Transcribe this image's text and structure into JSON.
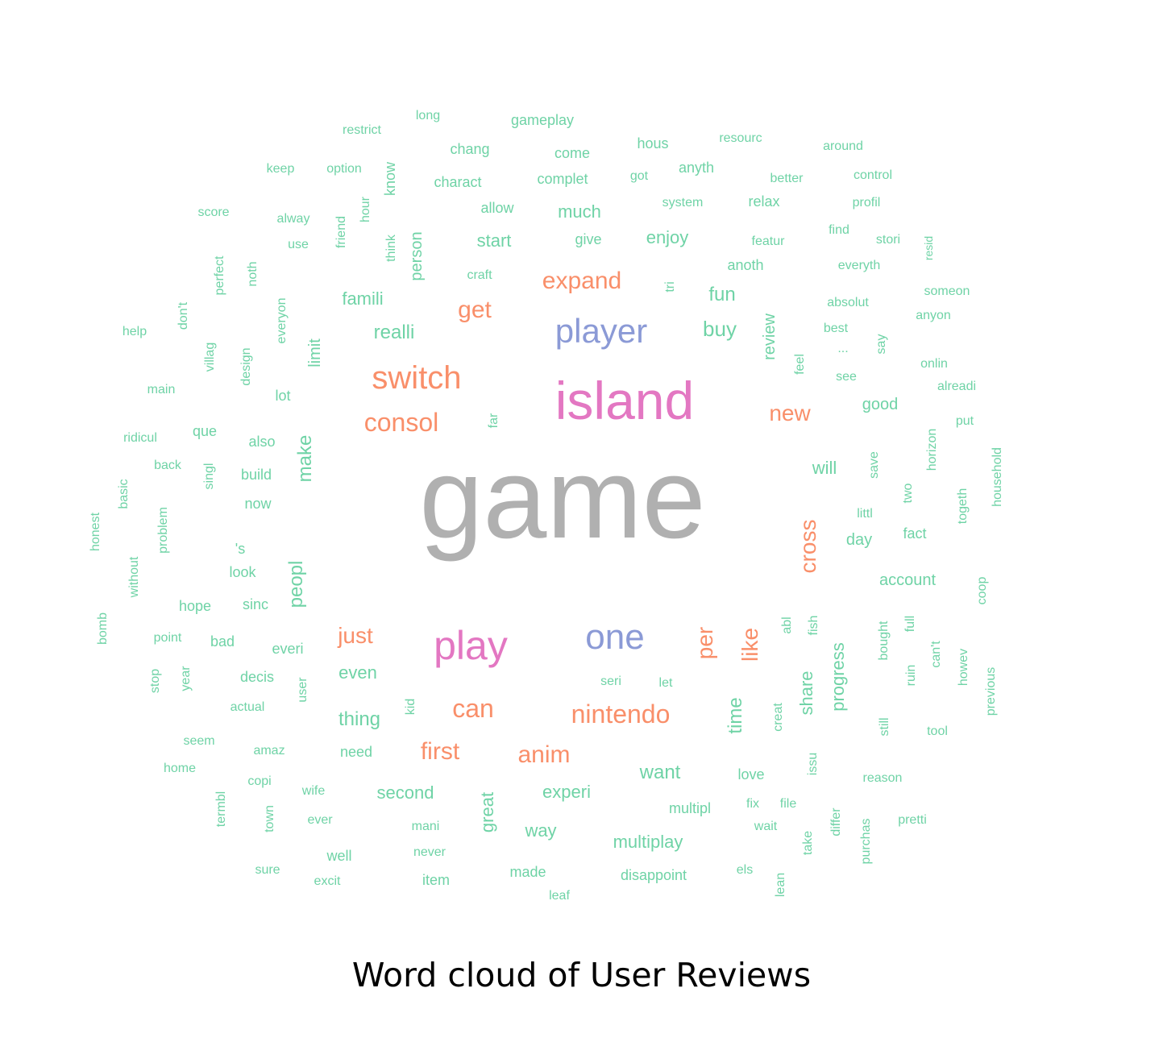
{
  "title": "Word cloud of User Reviews",
  "colors": {
    "green": "#6fd3a6",
    "orange": "#f98f6a",
    "pink": "#e377c2",
    "blue": "#8b9ad6",
    "gray": "#b0b0b0"
  },
  "words": [
    {
      "text": "game",
      "color": "gray"
    },
    {
      "text": "island",
      "color": "pink"
    },
    {
      "text": "play",
      "color": "pink"
    },
    {
      "text": "player",
      "color": "blue"
    },
    {
      "text": "one",
      "color": "blue"
    },
    {
      "text": "switch",
      "color": "orange"
    },
    {
      "text": "consol",
      "color": "orange"
    },
    {
      "text": "nintendo",
      "color": "orange"
    },
    {
      "text": "expand",
      "color": "orange"
    },
    {
      "text": "get",
      "color": "orange"
    },
    {
      "text": "new",
      "color": "orange"
    },
    {
      "text": "can",
      "color": "orange"
    },
    {
      "text": "just",
      "color": "orange"
    },
    {
      "text": "first",
      "color": "orange"
    },
    {
      "text": "anim",
      "color": "orange"
    },
    {
      "text": "cross",
      "color": "orange"
    },
    {
      "text": "like",
      "color": "orange"
    },
    {
      "text": "per",
      "color": "orange"
    },
    {
      "text": "buy",
      "color": "green"
    },
    {
      "text": "fun",
      "color": "green"
    },
    {
      "text": "make",
      "color": "green"
    },
    {
      "text": "peopl",
      "color": "green"
    },
    {
      "text": "limit",
      "color": "green"
    },
    {
      "text": "famili",
      "color": "green"
    },
    {
      "text": "realli",
      "color": "green"
    },
    {
      "text": "much",
      "color": "green"
    },
    {
      "text": "start",
      "color": "green"
    },
    {
      "text": "enjoy",
      "color": "green"
    },
    {
      "text": "want",
      "color": "green"
    },
    {
      "text": "thing",
      "color": "green"
    },
    {
      "text": "even",
      "color": "green"
    },
    {
      "text": "time",
      "color": "green"
    },
    {
      "text": "share",
      "color": "green"
    },
    {
      "text": "progress",
      "color": "green"
    },
    {
      "text": "will",
      "color": "green"
    },
    {
      "text": "good",
      "color": "green"
    },
    {
      "text": "day",
      "color": "green"
    },
    {
      "text": "account",
      "color": "green"
    },
    {
      "text": "second",
      "color": "green"
    },
    {
      "text": "experi",
      "color": "green"
    },
    {
      "text": "great",
      "color": "green"
    },
    {
      "text": "way",
      "color": "green"
    },
    {
      "text": "multiplay",
      "color": "green"
    },
    {
      "text": "review",
      "color": "green"
    },
    {
      "text": "person",
      "color": "green"
    },
    {
      "text": "gameplay",
      "color": "green"
    },
    {
      "text": "restrict",
      "color": "green"
    },
    {
      "text": "long",
      "color": "green"
    },
    {
      "text": "chang",
      "color": "green"
    },
    {
      "text": "come",
      "color": "green"
    },
    {
      "text": "hous",
      "color": "green"
    },
    {
      "text": "resourc",
      "color": "green"
    },
    {
      "text": "around",
      "color": "green"
    },
    {
      "text": "keep",
      "color": "green"
    },
    {
      "text": "option",
      "color": "green"
    },
    {
      "text": "know",
      "color": "green"
    },
    {
      "text": "charact",
      "color": "green"
    },
    {
      "text": "complet",
      "color": "green"
    },
    {
      "text": "got",
      "color": "green"
    },
    {
      "text": "anyth",
      "color": "green"
    },
    {
      "text": "better",
      "color": "green"
    },
    {
      "text": "control",
      "color": "green"
    },
    {
      "text": "score",
      "color": "green"
    },
    {
      "text": "alway",
      "color": "green"
    },
    {
      "text": "hour",
      "color": "green"
    },
    {
      "text": "allow",
      "color": "green"
    },
    {
      "text": "system",
      "color": "green"
    },
    {
      "text": "relax",
      "color": "green"
    },
    {
      "text": "profil",
      "color": "green"
    },
    {
      "text": "use",
      "color": "green"
    },
    {
      "text": "friend",
      "color": "green"
    },
    {
      "text": "give",
      "color": "green"
    },
    {
      "text": "featur",
      "color": "green"
    },
    {
      "text": "find",
      "color": "green"
    },
    {
      "text": "stori",
      "color": "green"
    },
    {
      "text": "resid",
      "color": "green"
    },
    {
      "text": "perfect",
      "color": "green"
    },
    {
      "text": "noth",
      "color": "green"
    },
    {
      "text": "think",
      "color": "green"
    },
    {
      "text": "craft",
      "color": "green"
    },
    {
      "text": "anoth",
      "color": "green"
    },
    {
      "text": "everyth",
      "color": "green"
    },
    {
      "text": "someon",
      "color": "green"
    },
    {
      "text": "don't",
      "color": "green"
    },
    {
      "text": "everyon",
      "color": "green"
    },
    {
      "text": "tri",
      "color": "green"
    },
    {
      "text": "absolut",
      "color": "green"
    },
    {
      "text": "anyon",
      "color": "green"
    },
    {
      "text": "help",
      "color": "green"
    },
    {
      "text": "best",
      "color": "green"
    },
    {
      "text": "villag",
      "color": "green"
    },
    {
      "text": "design",
      "color": "green"
    },
    {
      "text": "feel",
      "color": "green"
    },
    {
      "text": "...",
      "color": "green"
    },
    {
      "text": "say",
      "color": "green"
    },
    {
      "text": "onlin",
      "color": "green"
    },
    {
      "text": "see",
      "color": "green"
    },
    {
      "text": "alreadi",
      "color": "green"
    },
    {
      "text": "main",
      "color": "green"
    },
    {
      "text": "lot",
      "color": "green"
    },
    {
      "text": "far",
      "color": "green"
    },
    {
      "text": "put",
      "color": "green"
    },
    {
      "text": "ridicul",
      "color": "green"
    },
    {
      "text": "que",
      "color": "green"
    },
    {
      "text": "also",
      "color": "green"
    },
    {
      "text": "horizon",
      "color": "green"
    },
    {
      "text": "back",
      "color": "green"
    },
    {
      "text": "singl",
      "color": "green"
    },
    {
      "text": "build",
      "color": "green"
    },
    {
      "text": "save",
      "color": "green"
    },
    {
      "text": "household",
      "color": "green"
    },
    {
      "text": "basic",
      "color": "green"
    },
    {
      "text": "now",
      "color": "green"
    },
    {
      "text": "two",
      "color": "green"
    },
    {
      "text": "littl",
      "color": "green"
    },
    {
      "text": "togeth",
      "color": "green"
    },
    {
      "text": "honest",
      "color": "green"
    },
    {
      "text": "problem",
      "color": "green"
    },
    {
      "text": "fact",
      "color": "green"
    },
    {
      "text": "'s",
      "color": "green"
    },
    {
      "text": "without",
      "color": "green"
    },
    {
      "text": "look",
      "color": "green"
    },
    {
      "text": "coop",
      "color": "green"
    },
    {
      "text": "hope",
      "color": "green"
    },
    {
      "text": "sinc",
      "color": "green"
    },
    {
      "text": "bomb",
      "color": "green"
    },
    {
      "text": "abl",
      "color": "green"
    },
    {
      "text": "fish",
      "color": "green"
    },
    {
      "text": "bought",
      "color": "green"
    },
    {
      "text": "full",
      "color": "green"
    },
    {
      "text": "point",
      "color": "green"
    },
    {
      "text": "bad",
      "color": "green"
    },
    {
      "text": "everi",
      "color": "green"
    },
    {
      "text": "ruin",
      "color": "green"
    },
    {
      "text": "can't",
      "color": "green"
    },
    {
      "text": "howev",
      "color": "green"
    },
    {
      "text": "previous",
      "color": "green"
    },
    {
      "text": "seri",
      "color": "green"
    },
    {
      "text": "let",
      "color": "green"
    },
    {
      "text": "stop",
      "color": "green"
    },
    {
      "text": "year",
      "color": "green"
    },
    {
      "text": "decis",
      "color": "green"
    },
    {
      "text": "user",
      "color": "green"
    },
    {
      "text": "actual",
      "color": "green"
    },
    {
      "text": "kid",
      "color": "green"
    },
    {
      "text": "creat",
      "color": "green"
    },
    {
      "text": "still",
      "color": "green"
    },
    {
      "text": "tool",
      "color": "green"
    },
    {
      "text": "seem",
      "color": "green"
    },
    {
      "text": "amaz",
      "color": "green"
    },
    {
      "text": "need",
      "color": "green"
    },
    {
      "text": "home",
      "color": "green"
    },
    {
      "text": "issu",
      "color": "green"
    },
    {
      "text": "love",
      "color": "green"
    },
    {
      "text": "reason",
      "color": "green"
    },
    {
      "text": "copi",
      "color": "green"
    },
    {
      "text": "wife",
      "color": "green"
    },
    {
      "text": "multipl",
      "color": "green"
    },
    {
      "text": "fix",
      "color": "green"
    },
    {
      "text": "file",
      "color": "green"
    },
    {
      "text": "termbl",
      "color": "green"
    },
    {
      "text": "town",
      "color": "green"
    },
    {
      "text": "ever",
      "color": "green"
    },
    {
      "text": "mani",
      "color": "green"
    },
    {
      "text": "wait",
      "color": "green"
    },
    {
      "text": "differ",
      "color": "green"
    },
    {
      "text": "pretti",
      "color": "green"
    },
    {
      "text": "take",
      "color": "green"
    },
    {
      "text": "purchas",
      "color": "green"
    },
    {
      "text": "well",
      "color": "green"
    },
    {
      "text": "never",
      "color": "green"
    },
    {
      "text": "sure",
      "color": "green"
    },
    {
      "text": "excit",
      "color": "green"
    },
    {
      "text": "item",
      "color": "green"
    },
    {
      "text": "made",
      "color": "green"
    },
    {
      "text": "disappoint",
      "color": "green"
    },
    {
      "text": "els",
      "color": "green"
    },
    {
      "text": "leaf",
      "color": "green"
    },
    {
      "text": "lean",
      "color": "green"
    }
  ]
}
